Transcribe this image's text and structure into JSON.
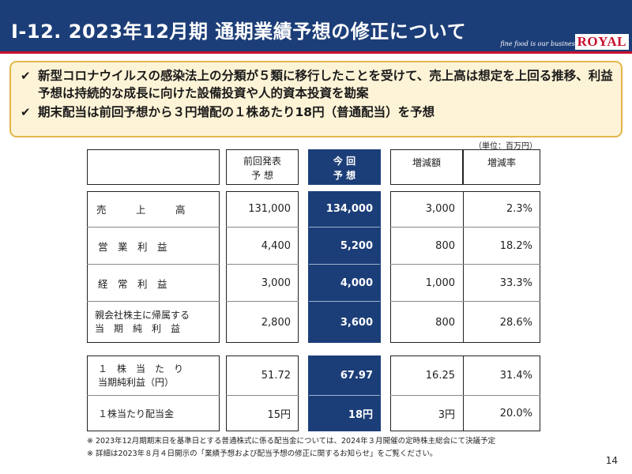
{
  "header": {
    "title": "Ⅰ-12.  2023年12月期 通期業績予想の修正について",
    "tagline": "fine food is our business",
    "brand": "ROYAL"
  },
  "summary": {
    "bullets": [
      "新型コロナウイルスの感染法上の分類が５類に移行したことを受けて、売上高は想定を上回る推移、利益予想は持続的な成長に向けた設備投資や人的資本投資を勘案",
      "期末配当は前回予想から３円増配の１株あたり18円（普通配当）を予想"
    ]
  },
  "unit_note": "（単位：百万円）",
  "table": {
    "headers": {
      "prev": [
        "前回発表",
        "予 想"
      ],
      "current": [
        "今  回",
        "予 想"
      ],
      "diff": "増減額",
      "rate": "増減率"
    },
    "rows": [
      {
        "label": [
          "売　　　上　　　高"
        ],
        "prev": "131,000",
        "current": "134,000",
        "diff": "3,000",
        "rate": "2.3%"
      },
      {
        "label": [
          "営　業　利　益"
        ],
        "prev": "4,400",
        "current": "5,200",
        "diff": "800",
        "rate": "18.2%"
      },
      {
        "label": [
          "経　常　利　益"
        ],
        "prev": "3,000",
        "current": "4,000",
        "diff": "1,000",
        "rate": "33.3%"
      },
      {
        "label": [
          "親会社株主に帰属する",
          "当　期　純　利　益"
        ],
        "prev": "2,800",
        "current": "3,600",
        "diff": "800",
        "rate": "28.6%"
      }
    ],
    "per_share_rows": [
      {
        "label": [
          "１　株　当　た　り",
          "当期純利益（円）"
        ],
        "prev": "51.72",
        "current": "67.97",
        "diff": "16.25",
        "rate": "31.4%"
      },
      {
        "label": [
          "１株当たり配当金"
        ],
        "prev": "15円",
        "current": "18円",
        "diff": "3円",
        "rate": "20.0%"
      }
    ]
  },
  "notes": [
    "※ 2023年12月期期末日を基準日とする普通株式に係る配当金については、2024年３月開催の定時株主総会にて決議予定",
    "※ 詳細は2023年８月４日開示の「業績予想および配当予想の修正に関するお知らせ」をご覧ください。"
  ],
  "page_number": "14"
}
